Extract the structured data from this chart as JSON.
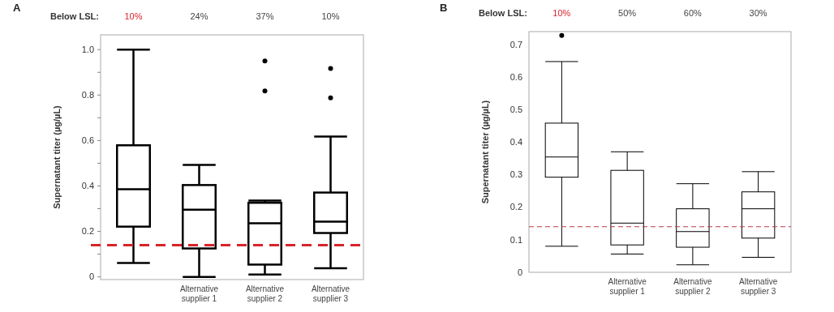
{
  "chart_data": [
    {
      "type": "box",
      "title": "A",
      "ylabel": "Supernatant titer (µg/µL)",
      "categories": [
        null,
        "Alternative supplier 1",
        "Alternative supplier 2",
        "Alternative supplier 3"
      ],
      "boxes": [
        {
          "low": 0.061,
          "q1": 0.221,
          "median": 0.386,
          "q3": 0.579,
          "high": 1.0
        },
        {
          "low": 0.0,
          "q1": 0.125,
          "median": 0.296,
          "q3": 0.404,
          "high": 0.493
        },
        {
          "low": 0.01,
          "q1": 0.054,
          "median": 0.236,
          "q3": 0.326,
          "high": 0.336,
          "outliers": [
            0.95,
            0.818
          ]
        },
        {
          "low": 0.038,
          "q1": 0.193,
          "median": 0.243,
          "q3": 0.371,
          "high": 0.617,
          "outliers": [
            0.917,
            0.788
          ]
        }
      ],
      "ylim": [
        -0.012,
        1.065
      ],
      "yticks": [
        {
          "value": 0,
          "label": "0"
        },
        {
          "value": 0.1,
          "label": null
        },
        0.2,
        {
          "value": 0.3,
          "label": null
        },
        0.4,
        {
          "value": 0.5,
          "label": null
        },
        0.6,
        {
          "value": 0.7,
          "label": null
        },
        0.8,
        {
          "value": 0.9,
          "label": null
        },
        {
          "value": 1,
          "label": "1.0"
        }
      ],
      "ref_lines": [
        {
          "axis": "y",
          "value": 0.14,
          "color": "#d9242b",
          "line_style": "dashed"
        }
      ],
      "annotations": [
        "Below LSL:",
        "10%",
        "24%",
        "37%",
        "10%"
      ],
      "grid": false
    },
    {
      "type": "box",
      "title": "B",
      "ylabel": "Supernatant titer (µg/µL)",
      "categories": [
        null,
        "Alternative supplier 1",
        "Alternative supplier 2",
        "Alternative supplier 3"
      ],
      "boxes": [
        {
          "low": 0.08,
          "q1": 0.292,
          "median": 0.354,
          "q3": 0.458,
          "high": 0.647,
          "outliers": [
            0.727
          ]
        },
        {
          "low": 0.056,
          "q1": 0.084,
          "median": 0.151,
          "q3": 0.313,
          "high": 0.37
        },
        {
          "low": 0.023,
          "q1": 0.077,
          "median": 0.125,
          "q3": 0.195,
          "high": 0.272
        },
        {
          "low": 0.046,
          "q1": 0.105,
          "median": 0.195,
          "q3": 0.247,
          "high": 0.309
        }
      ],
      "ylim": [
        0,
        0.739
      ],
      "yticks": [
        0,
        0.1,
        0.2,
        0.3,
        0.4,
        0.5,
        0.6,
        0.7
      ],
      "ref_lines": [
        {
          "axis": "y",
          "value": 0.14,
          "color": "#c0394a",
          "line_style": "dashed"
        }
      ],
      "annotations": [
        "Below LSL:",
        "10%",
        "50%",
        "60%",
        "30%"
      ],
      "grid": false
    }
  ]
}
